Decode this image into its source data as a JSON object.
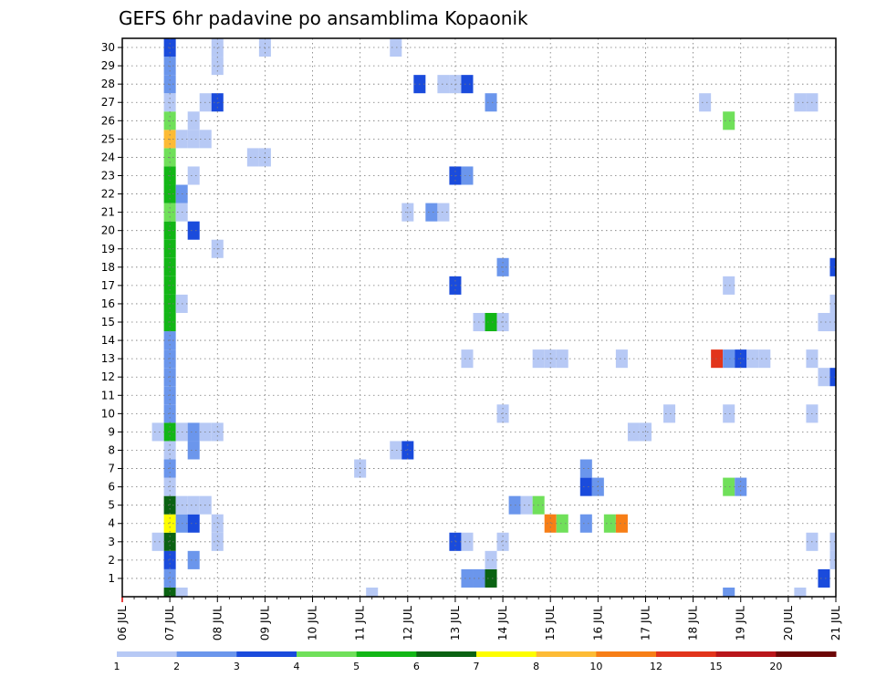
{
  "chart_data": {
    "type": "heatmap",
    "title": "GEFS 6hr padavine po ansamblima Kopaonik",
    "xlabel": "",
    "ylabel": "",
    "x_tick_labels": [
      "06 JUL",
      "07 JUL",
      "08 JUL",
      "09 JUL",
      "10 JUL",
      "11 JUL",
      "12 JUL",
      "13 JUL",
      "14 JUL",
      "15 JUL",
      "16 JUL",
      "17 JUL",
      "18 JUL",
      "19 JUL",
      "20 JUL",
      "21 JUL"
    ],
    "y_tick_labels": [
      "1",
      "2",
      "3",
      "4",
      "5",
      "6",
      "7",
      "8",
      "9",
      "10",
      "11",
      "12",
      "13",
      "14",
      "15",
      "16",
      "17",
      "18",
      "19",
      "20",
      "21",
      "22",
      "23",
      "24",
      "25",
      "26",
      "27",
      "28",
      "29",
      "30"
    ],
    "ylim": [
      0,
      30
    ],
    "grid": true,
    "time_step": "6hr",
    "colorbar": {
      "boundaries": [
        "1",
        "2",
        "3",
        "4",
        "5",
        "6",
        "7",
        "8",
        "10",
        "12",
        "15",
        "20"
      ],
      "colors": [
        "#b7c9f5",
        "#6b96ec",
        "#1a4bdc",
        "#70e05a",
        "#12b616",
        "#0a6212",
        "#fdfd00",
        "#fdbb35",
        "#f77e16",
        "#e2341b",
        "#b9161a",
        "#6d0606"
      ]
    },
    "cells": [
      {
        "x": "07 JUL 00Z",
        "member": "0",
        "color": "#0a6212"
      },
      {
        "x": "07 JUL 00Z",
        "member": "1",
        "color": "#6b96ec"
      },
      {
        "x": "07 JUL 00Z",
        "member": "2",
        "color": "#1a4bdc"
      },
      {
        "x": "07 JUL 00Z",
        "member": "3",
        "color": "#0a6212"
      },
      {
        "x": "07 JUL 00Z",
        "member": "4",
        "color": "#fdfd00"
      },
      {
        "x": "07 JUL 00Z",
        "member": "5",
        "color": "#0a6212"
      },
      {
        "x": "07 JUL 00Z",
        "member": "6",
        "color": "#b7c9f5"
      },
      {
        "x": "07 JUL 00Z",
        "member": "7",
        "color": "#6b96ec"
      },
      {
        "x": "07 JUL 00Z",
        "member": "8",
        "color": "#b7c9f5"
      },
      {
        "x": "07 JUL 00Z",
        "member": "9",
        "color": "#12b616"
      },
      {
        "x": "07 JUL 00Z",
        "member": "10",
        "color": "#6b96ec"
      },
      {
        "x": "07 JUL 00Z",
        "member": "11",
        "color": "#6b96ec"
      },
      {
        "x": "07 JUL 00Z",
        "member": "12",
        "color": "#6b96ec"
      },
      {
        "x": "07 JUL 00Z",
        "member": "13",
        "color": "#6b96ec"
      },
      {
        "x": "07 JUL 00Z",
        "member": "14",
        "color": "#6b96ec"
      },
      {
        "x": "07 JUL 00Z",
        "member": "15",
        "color": "#12b616"
      },
      {
        "x": "07 JUL 00Z",
        "member": "16",
        "color": "#12b616"
      },
      {
        "x": "07 JUL 00Z",
        "member": "17",
        "color": "#12b616"
      },
      {
        "x": "07 JUL 00Z",
        "member": "18",
        "color": "#12b616"
      },
      {
        "x": "07 JUL 00Z",
        "member": "19",
        "color": "#12b616"
      },
      {
        "x": "07 JUL 00Z",
        "member": "20",
        "color": "#12b616"
      },
      {
        "x": "07 JUL 00Z",
        "member": "21",
        "color": "#70e05a"
      },
      {
        "x": "07 JUL 00Z",
        "member": "22",
        "color": "#12b616"
      },
      {
        "x": "07 JUL 00Z",
        "member": "23",
        "color": "#12b616"
      },
      {
        "x": "07 JUL 00Z",
        "member": "24",
        "color": "#70e05a"
      },
      {
        "x": "07 JUL 00Z",
        "member": "25",
        "color": "#fdbb35"
      },
      {
        "x": "07 JUL 00Z",
        "member": "26",
        "color": "#70e05a"
      },
      {
        "x": "07 JUL 00Z",
        "member": "27",
        "color": "#b7c9f5"
      },
      {
        "x": "07 JUL 00Z",
        "member": "28",
        "color": "#6b96ec"
      },
      {
        "x": "07 JUL 00Z",
        "member": "29",
        "color": "#6b96ec"
      },
      {
        "x": "07 JUL 00Z",
        "member": "30",
        "color": "#1a4bdc"
      },
      {
        "x": "06 JUL 18Z",
        "member": "3",
        "color": "#b7c9f5"
      },
      {
        "x": "06 JUL 18Z",
        "member": "9",
        "color": "#b7c9f5"
      },
      {
        "x": "07 JUL 06Z",
        "member": "0",
        "color": "#b7c9f5"
      },
      {
        "x": "07 JUL 06Z",
        "member": "4",
        "color": "#6b96ec"
      },
      {
        "x": "07 JUL 06Z",
        "member": "5",
        "color": "#b7c9f5"
      },
      {
        "x": "07 JUL 06Z",
        "member": "9",
        "color": "#b7c9f5"
      },
      {
        "x": "07 JUL 06Z",
        "member": "16",
        "color": "#b7c9f5"
      },
      {
        "x": "07 JUL 06Z",
        "member": "21",
        "color": "#b7c9f5"
      },
      {
        "x": "07 JUL 06Z",
        "member": "22",
        "color": "#6b96ec"
      },
      {
        "x": "07 JUL 06Z",
        "member": "25",
        "color": "#b7c9f5"
      },
      {
        "x": "07 JUL 12Z",
        "member": "2",
        "color": "#6b96ec"
      },
      {
        "x": "07 JUL 12Z",
        "member": "4",
        "color": "#1a4bdc"
      },
      {
        "x": "07 JUL 12Z",
        "member": "5",
        "color": "#b7c9f5"
      },
      {
        "x": "07 JUL 12Z",
        "member": "8",
        "color": "#6b96ec"
      },
      {
        "x": "07 JUL 12Z",
        "member": "9",
        "color": "#6b96ec"
      },
      {
        "x": "07 JUL 12Z",
        "member": "20",
        "color": "#1a4bdc"
      },
      {
        "x": "07 JUL 12Z",
        "member": "23",
        "color": "#b7c9f5"
      },
      {
        "x": "07 JUL 12Z",
        "member": "25",
        "color": "#b7c9f5"
      },
      {
        "x": "07 JUL 12Z",
        "member": "26",
        "color": "#b7c9f5"
      },
      {
        "x": "07 JUL 18Z",
        "member": "5",
        "color": "#b7c9f5"
      },
      {
        "x": "07 JUL 18Z",
        "member": "9",
        "color": "#b7c9f5"
      },
      {
        "x": "07 JUL 18Z",
        "member": "25",
        "color": "#b7c9f5"
      },
      {
        "x": "07 JUL 18Z",
        "member": "27",
        "color": "#b7c9f5"
      },
      {
        "x": "08 JUL 00Z",
        "member": "3",
        "color": "#b7c9f5"
      },
      {
        "x": "08 JUL 00Z",
        "member": "4",
        "color": "#b7c9f5"
      },
      {
        "x": "08 JUL 00Z",
        "member": "9",
        "color": "#b7c9f5"
      },
      {
        "x": "08 JUL 00Z",
        "member": "19",
        "color": "#b7c9f5"
      },
      {
        "x": "08 JUL 00Z",
        "member": "27",
        "color": "#1a4bdc"
      },
      {
        "x": "08 JUL 00Z",
        "member": "29",
        "color": "#b7c9f5"
      },
      {
        "x": "08 JUL 00Z",
        "member": "30",
        "color": "#b7c9f5"
      },
      {
        "x": "08 JUL 18Z",
        "member": "24",
        "color": "#b7c9f5"
      },
      {
        "x": "09 JUL 00Z",
        "member": "24",
        "color": "#b7c9f5"
      },
      {
        "x": "09 JUL 00Z",
        "member": "30",
        "color": "#b7c9f5"
      },
      {
        "x": "11 JUL 00Z",
        "member": "7",
        "color": "#b7c9f5"
      },
      {
        "x": "11 JUL 06Z",
        "member": "0",
        "color": "#b7c9f5"
      },
      {
        "x": "11 JUL 18Z",
        "member": "8",
        "color": "#b7c9f5"
      },
      {
        "x": "11 JUL 18Z",
        "member": "30",
        "color": "#b7c9f5"
      },
      {
        "x": "12 JUL 00Z",
        "member": "8",
        "color": "#1a4bdc"
      },
      {
        "x": "12 JUL 00Z",
        "member": "21",
        "color": "#b7c9f5"
      },
      {
        "x": "12 JUL 06Z",
        "member": "28",
        "color": "#1a4bdc"
      },
      {
        "x": "12 JUL 12Z",
        "member": "21",
        "color": "#6b96ec"
      },
      {
        "x": "12 JUL 18Z",
        "member": "21",
        "color": "#b7c9f5"
      },
      {
        "x": "12 JUL 18Z",
        "member": "28",
        "color": "#b7c9f5"
      },
      {
        "x": "13 JUL 00Z",
        "member": "3",
        "color": "#1a4bdc"
      },
      {
        "x": "13 JUL 00Z",
        "member": "17",
        "color": "#1a4bdc"
      },
      {
        "x": "13 JUL 00Z",
        "member": "23",
        "color": "#1a4bdc"
      },
      {
        "x": "13 JUL 00Z",
        "member": "28",
        "color": "#b7c9f5"
      },
      {
        "x": "13 JUL 06Z",
        "member": "1",
        "color": "#6b96ec"
      },
      {
        "x": "13 JUL 06Z",
        "member": "3",
        "color": "#b7c9f5"
      },
      {
        "x": "13 JUL 06Z",
        "member": "13",
        "color": "#b7c9f5"
      },
      {
        "x": "13 JUL 06Z",
        "member": "23",
        "color": "#6b96ec"
      },
      {
        "x": "13 JUL 06Z",
        "member": "28",
        "color": "#1a4bdc"
      },
      {
        "x": "13 JUL 12Z",
        "member": "1",
        "color": "#6b96ec"
      },
      {
        "x": "13 JUL 12Z",
        "member": "15",
        "color": "#b7c9f5"
      },
      {
        "x": "13 JUL 18Z",
        "member": "1",
        "color": "#0a6212"
      },
      {
        "x": "13 JUL 18Z",
        "member": "2",
        "color": "#b7c9f5"
      },
      {
        "x": "13 JUL 18Z",
        "member": "15",
        "color": "#12b616"
      },
      {
        "x": "13 JUL 18Z",
        "member": "27",
        "color": "#6b96ec"
      },
      {
        "x": "14 JUL 00Z",
        "member": "3",
        "color": "#b7c9f5"
      },
      {
        "x": "14 JUL 00Z",
        "member": "10",
        "color": "#b7c9f5"
      },
      {
        "x": "14 JUL 00Z",
        "member": "15",
        "color": "#b7c9f5"
      },
      {
        "x": "14 JUL 00Z",
        "member": "18",
        "color": "#6b96ec"
      },
      {
        "x": "14 JUL 06Z",
        "member": "5",
        "color": "#6b96ec"
      },
      {
        "x": "14 JUL 12Z",
        "member": "5",
        "color": "#b7c9f5"
      },
      {
        "x": "14 JUL 18Z",
        "member": "5",
        "color": "#70e05a"
      },
      {
        "x": "14 JUL 18Z",
        "member": "13",
        "color": "#b7c9f5"
      },
      {
        "x": "15 JUL 00Z",
        "member": "4",
        "color": "#f77e16"
      },
      {
        "x": "15 JUL 00Z",
        "member": "13",
        "color": "#b7c9f5"
      },
      {
        "x": "15 JUL 06Z",
        "member": "4",
        "color": "#70e05a"
      },
      {
        "x": "15 JUL 06Z",
        "member": "13",
        "color": "#b7c9f5"
      },
      {
        "x": "15 JUL 18Z",
        "member": "4",
        "color": "#6b96ec"
      },
      {
        "x": "15 JUL 18Z",
        "member": "6",
        "color": "#1a4bdc"
      },
      {
        "x": "15 JUL 18Z",
        "member": "7",
        "color": "#6b96ec"
      },
      {
        "x": "16 JUL 00Z",
        "member": "6",
        "color": "#6b96ec"
      },
      {
        "x": "16 JUL 06Z",
        "member": "4",
        "color": "#70e05a"
      },
      {
        "x": "16 JUL 12Z",
        "member": "4",
        "color": "#f77e16"
      },
      {
        "x": "16 JUL 12Z",
        "member": "13",
        "color": "#b7c9f5"
      },
      {
        "x": "16 JUL 18Z",
        "member": "9",
        "color": "#b7c9f5"
      },
      {
        "x": "17 JUL 00Z",
        "member": "9",
        "color": "#b7c9f5"
      },
      {
        "x": "17 JUL 12Z",
        "member": "10",
        "color": "#b7c9f5"
      },
      {
        "x": "18 JUL 06Z",
        "member": "27",
        "color": "#b7c9f5"
      },
      {
        "x": "18 JUL 12Z",
        "member": "13",
        "color": "#e2341b"
      },
      {
        "x": "18 JUL 18Z",
        "member": "0",
        "color": "#6b96ec"
      },
      {
        "x": "18 JUL 18Z",
        "member": "6",
        "color": "#70e05a"
      },
      {
        "x": "18 JUL 18Z",
        "member": "10",
        "color": "#b7c9f5"
      },
      {
        "x": "18 JUL 18Z",
        "member": "13",
        "color": "#6b96ec"
      },
      {
        "x": "18 JUL 18Z",
        "member": "17",
        "color": "#b7c9f5"
      },
      {
        "x": "18 JUL 18Z",
        "member": "26",
        "color": "#70e05a"
      },
      {
        "x": "19 JUL 00Z",
        "member": "6",
        "color": "#6b96ec"
      },
      {
        "x": "19 JUL 00Z",
        "member": "13",
        "color": "#1a4bdc"
      },
      {
        "x": "19 JUL 06Z",
        "member": "13",
        "color": "#b7c9f5"
      },
      {
        "x": "19 JUL 12Z",
        "member": "13",
        "color": "#b7c9f5"
      },
      {
        "x": "20 JUL 06Z",
        "member": "0",
        "color": "#b7c9f5"
      },
      {
        "x": "20 JUL 06Z",
        "member": "27",
        "color": "#b7c9f5"
      },
      {
        "x": "20 JUL 12Z",
        "member": "3",
        "color": "#b7c9f5"
      },
      {
        "x": "20 JUL 12Z",
        "member": "10",
        "color": "#b7c9f5"
      },
      {
        "x": "20 JUL 12Z",
        "member": "13",
        "color": "#b7c9f5"
      },
      {
        "x": "20 JUL 12Z",
        "member": "27",
        "color": "#b7c9f5"
      },
      {
        "x": "20 JUL 18Z",
        "member": "1",
        "color": "#1a4bdc"
      },
      {
        "x": "20 JUL 18Z",
        "member": "12",
        "color": "#b7c9f5"
      },
      {
        "x": "20 JUL 18Z",
        "member": "15",
        "color": "#b7c9f5"
      },
      {
        "x": "21 JUL 00Z",
        "member": "2",
        "color": "#b7c9f5"
      },
      {
        "x": "21 JUL 00Z",
        "member": "3",
        "color": "#b7c9f5"
      },
      {
        "x": "21 JUL 00Z",
        "member": "12",
        "color": "#1a4bdc"
      },
      {
        "x": "21 JUL 00Z",
        "member": "15",
        "color": "#b7c9f5"
      },
      {
        "x": "21 JUL 00Z",
        "member": "16",
        "color": "#b7c9f5"
      },
      {
        "x": "21 JUL 00Z",
        "member": "18",
        "color": "#1a4bdc"
      }
    ]
  }
}
